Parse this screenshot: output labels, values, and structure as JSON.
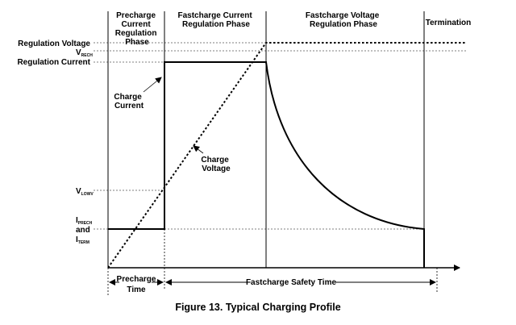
{
  "phases": {
    "precharge": [
      "Precharge",
      "Current",
      "Regulation",
      "Phase"
    ],
    "fastcharge_current": [
      "Fastcharge Current",
      "Regulation Phase"
    ],
    "fastcharge_voltage": [
      "Fastcharge Voltage",
      "Regulation Phase"
    ],
    "termination": "Termination"
  },
  "y_labels": {
    "regulation_voltage": "Regulation Voltage",
    "vrech_main": "V",
    "vrech_sub": "RECH",
    "regulation_current": "Regulation Current",
    "vlowv_main": "V",
    "vlowv_sub": "LOWV",
    "iprech_main": "I",
    "iprech_sub": "PRECH",
    "and": "and",
    "iterm_main": "I",
    "iterm_sub": "TERM"
  },
  "annotations": {
    "charge_current": [
      "Charge",
      "Current"
    ],
    "charge_voltage": [
      "Charge",
      "Voltage"
    ]
  },
  "timings": {
    "precharge_time": [
      "Precharge",
      "Time"
    ],
    "fastcharge_safety_time": "Fastcharge Safety Time"
  },
  "caption": "Figure 13.  Typical Charging Profile",
  "colors": {
    "ink": "#000000",
    "guide": "#555555",
    "background": "#ffffff"
  }
}
